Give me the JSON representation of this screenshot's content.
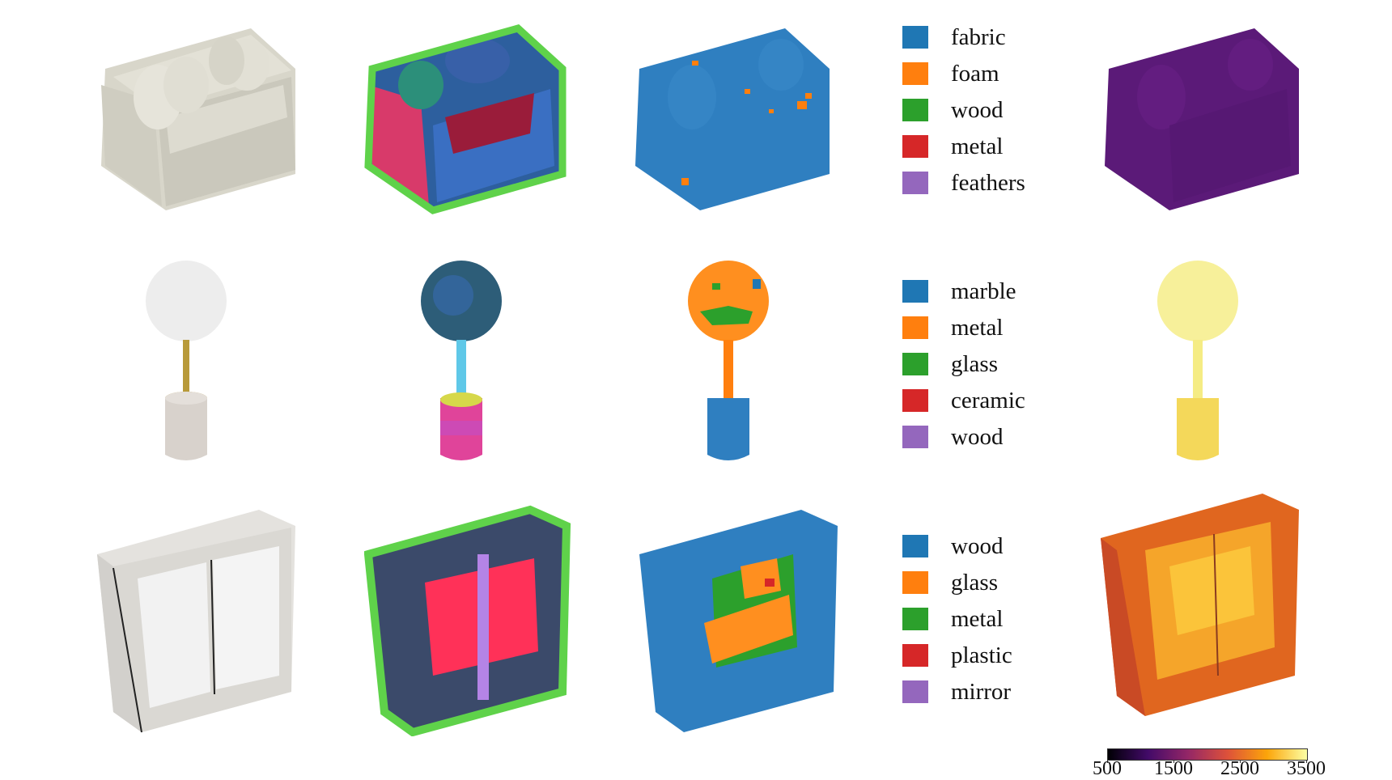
{
  "rows": [
    {
      "object": "sofa",
      "legend": [
        {
          "label": "fabric",
          "color": "#1f77b4"
        },
        {
          "label": "foam",
          "color": "#ff7f0e"
        },
        {
          "label": "wood",
          "color": "#2ca02c"
        },
        {
          "label": "metal",
          "color": "#d62728"
        },
        {
          "label": "feathers",
          "color": "#9467bd"
        }
      ]
    },
    {
      "object": "lamp",
      "legend": [
        {
          "label": "marble",
          "color": "#1f77b4"
        },
        {
          "label": "metal",
          "color": "#ff7f0e"
        },
        {
          "label": "glass",
          "color": "#2ca02c"
        },
        {
          "label": "ceramic",
          "color": "#d62728"
        },
        {
          "label": "wood",
          "color": "#9467bd"
        }
      ]
    },
    {
      "object": "wardrobe",
      "legend": [
        {
          "label": "wood",
          "color": "#1f77b4"
        },
        {
          "label": "glass",
          "color": "#ff7f0e"
        },
        {
          "label": "metal",
          "color": "#2ca02c"
        },
        {
          "label": "plastic",
          "color": "#d62728"
        },
        {
          "label": "mirror",
          "color": "#9467bd"
        }
      ]
    }
  ],
  "colorbar": {
    "ticks": [
      "500",
      "1500",
      "2500",
      "3500"
    ],
    "range": [
      500,
      3500
    ],
    "colormap": "inferno",
    "colors": [
      "#000004",
      "#420a68",
      "#932667",
      "#dd513a",
      "#fca50a",
      "#fcffa4"
    ]
  }
}
